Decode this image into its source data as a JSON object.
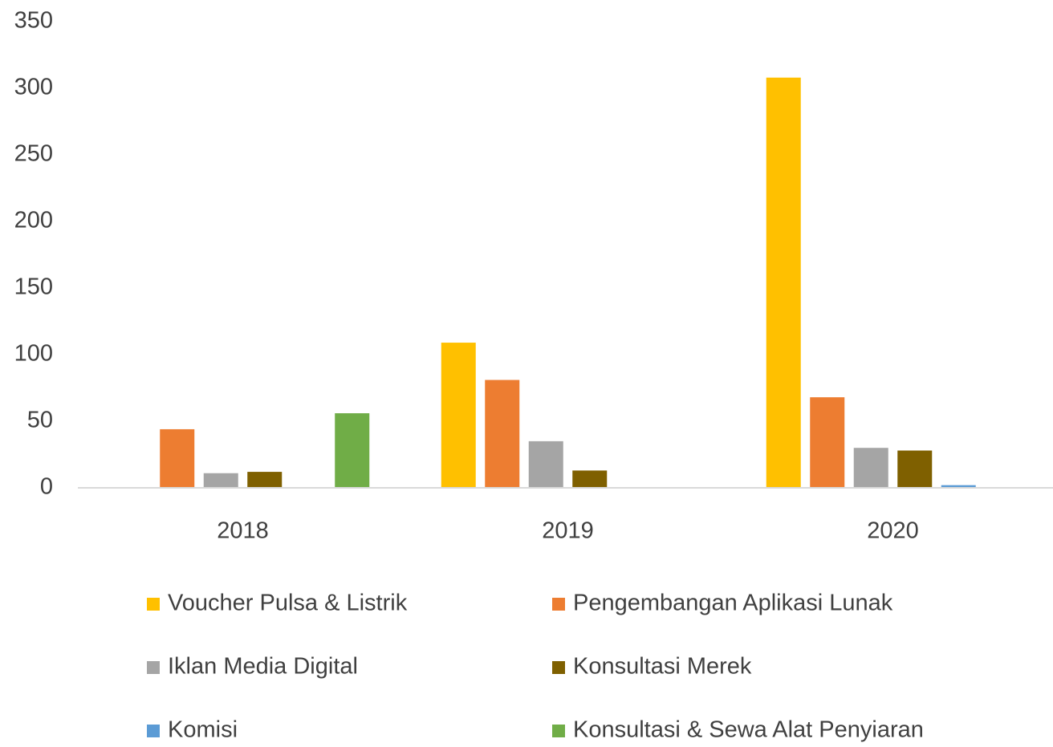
{
  "chart_data": {
    "type": "bar",
    "categories": [
      "2018",
      "2019",
      "2020"
    ],
    "series": [
      {
        "name": "Voucher Pulsa & Listrik",
        "color": "#ffc000",
        "values": [
          0,
          109,
          308
        ]
      },
      {
        "name": "Pengembangan Aplikasi Lunak",
        "color": "#ed7d31",
        "values": [
          44,
          81,
          68
        ]
      },
      {
        "name": "Iklan Media Digital",
        "color": "#a5a5a5",
        "values": [
          11,
          35,
          30
        ]
      },
      {
        "name": "Konsultasi Merek",
        "color": "#7f6000",
        "values": [
          12,
          13,
          28
        ]
      },
      {
        "name": "Komisi",
        "color": "#5b9bd5",
        "values": [
          0,
          0,
          2
        ]
      },
      {
        "name": "Konsultasi & Sewa Alat Penyiaran",
        "color": "#70ad47",
        "values": [
          56,
          0,
          0
        ]
      }
    ],
    "ylim": [
      0,
      350
    ],
    "yticks": [
      0,
      50,
      100,
      150,
      200,
      250,
      300,
      350
    ],
    "grid": false,
    "legend": "bottom"
  }
}
